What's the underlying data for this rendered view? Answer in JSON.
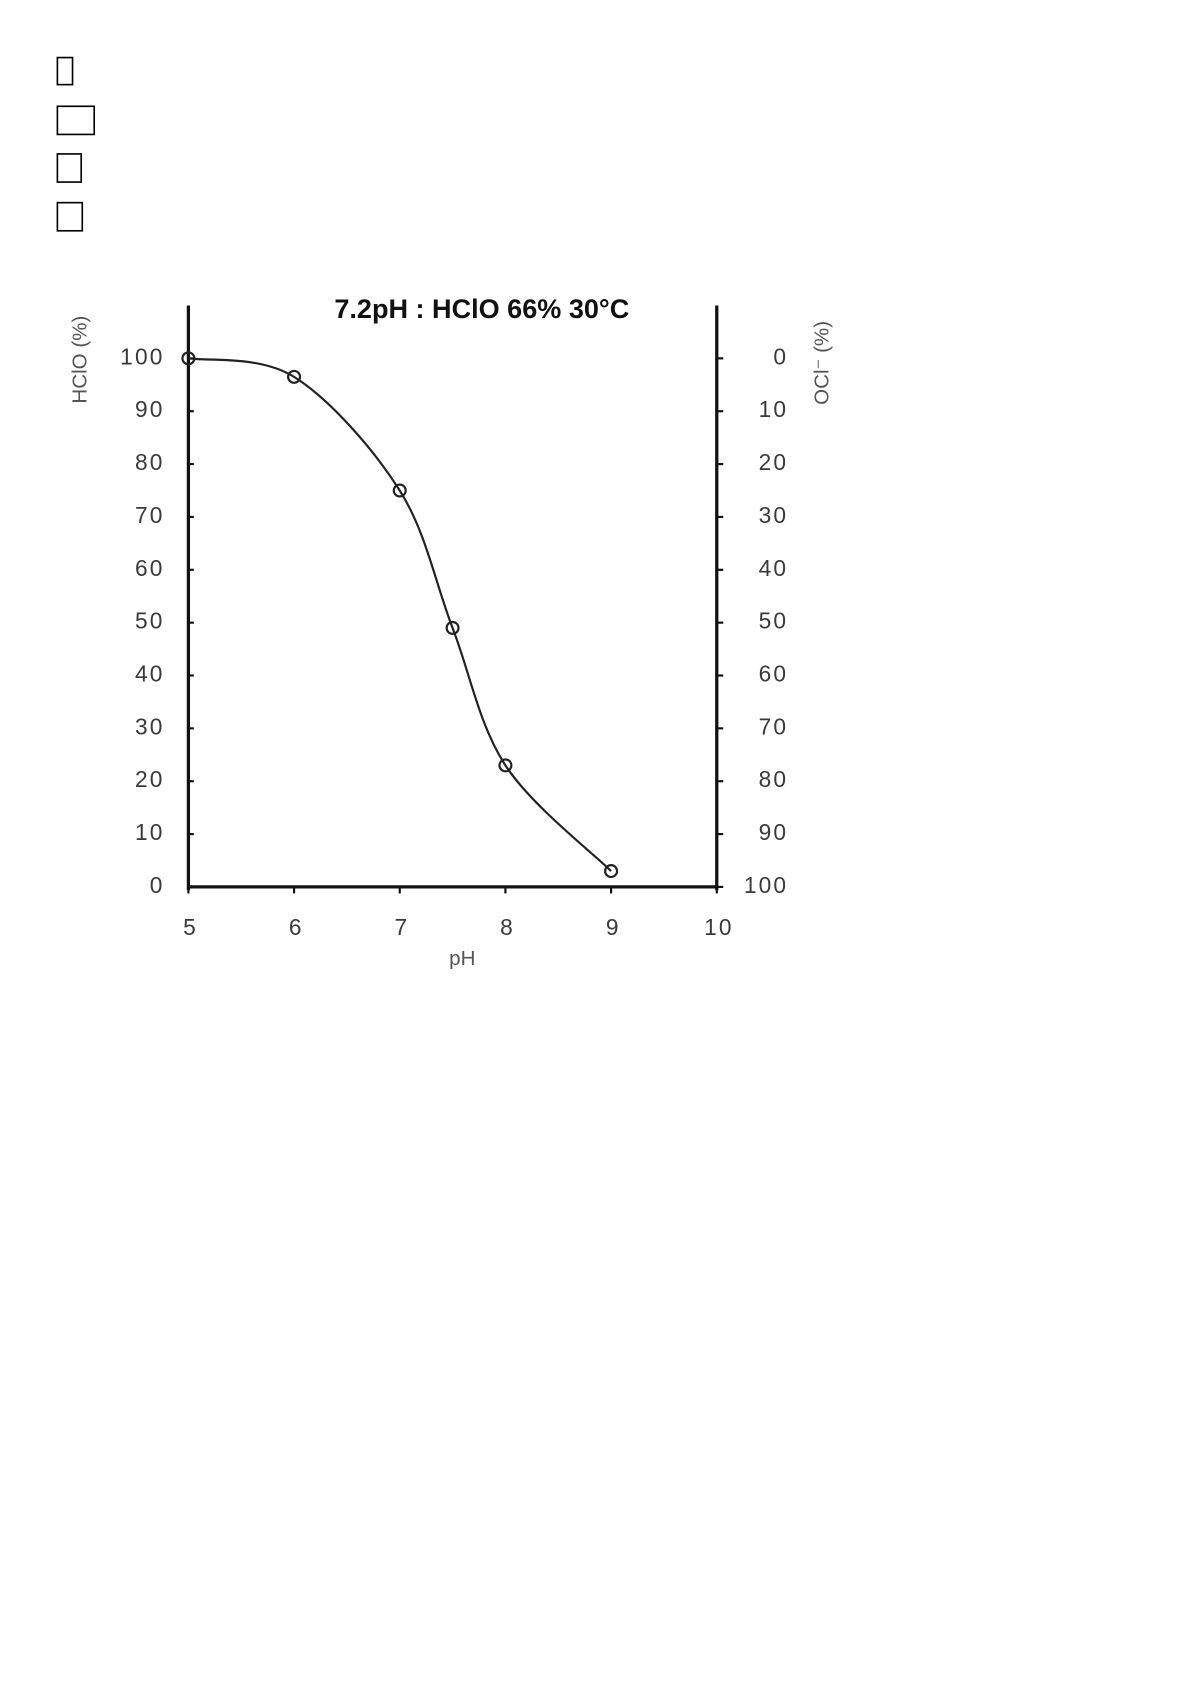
{
  "chart_data": {
    "type": "line",
    "title": "7.2pH : HClO 66% 30°C",
    "xlabel": "pH",
    "ylabel": "HClO (%)",
    "y2label": "OCl⁻ (%)",
    "x": [
      5,
      6,
      7,
      7.5,
      8,
      9
    ],
    "values": [
      100,
      96.5,
      75,
      49,
      23,
      3
    ],
    "color": "#222222",
    "xlim": [
      5,
      10
    ],
    "xticks": [
      5,
      6,
      7,
      8,
      9,
      10
    ],
    "ylim": [
      0,
      110
    ],
    "yticks": [
      0,
      10,
      20,
      30,
      40,
      50,
      60,
      70,
      80,
      90,
      100
    ],
    "y2lim": [
      100,
      -10
    ],
    "y2ticks": [
      0,
      10,
      20,
      30,
      40,
      50,
      60,
      70,
      80,
      90,
      100
    ]
  }
}
